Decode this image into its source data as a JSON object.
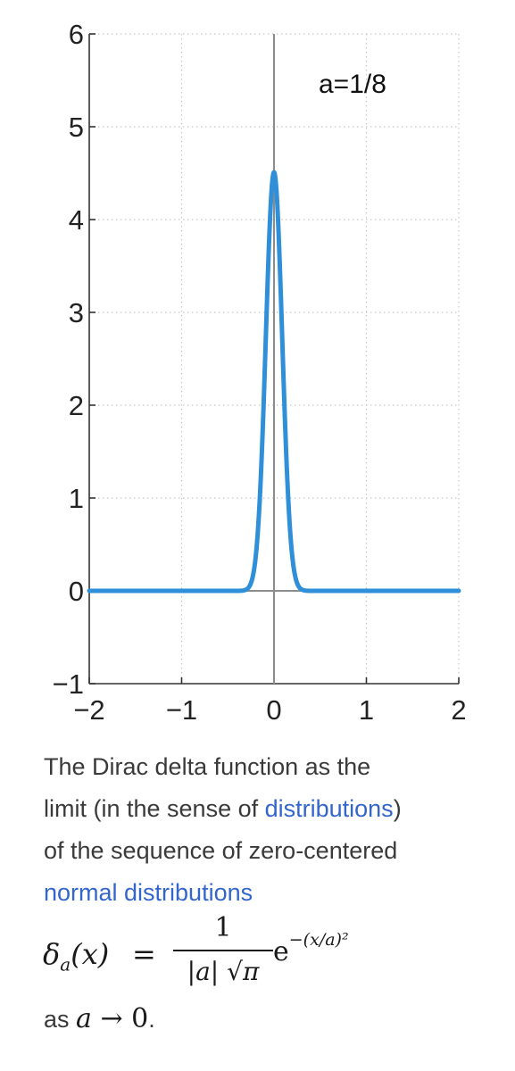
{
  "chart_data": {
    "type": "line",
    "title": "",
    "xlabel": "",
    "ylabel": "",
    "xlim": [
      -2,
      2
    ],
    "ylim": [
      -1,
      6
    ],
    "x_ticks": [
      "−2",
      "−1",
      "0",
      "1",
      "2"
    ],
    "y_ticks": [
      "−1",
      "0",
      "1",
      "2",
      "3",
      "4",
      "5",
      "6"
    ],
    "grid": true,
    "annotation": "a=1/8",
    "series": [
      {
        "color": "#2f8fd8",
        "x": [
          -2.0,
          -1.0,
          -0.5,
          -0.35,
          -0.3,
          -0.25,
          -0.2,
          -0.15,
          -0.1,
          -0.05,
          0.0,
          0.05,
          0.1,
          0.15,
          0.2,
          0.25,
          0.3,
          0.35,
          0.5,
          1.0,
          2.0
        ],
        "y": [
          0,
          0,
          0,
          0.002,
          0.014,
          0.083,
          0.35,
          1.07,
          2.37,
          3.83,
          4.51,
          3.83,
          2.37,
          1.07,
          0.35,
          0.083,
          0.014,
          0.002,
          0,
          0,
          0
        ]
      }
    ]
  },
  "caption": {
    "line1": "The Dirac delta function as the",
    "line2_before": "limit (in the sense of ",
    "link_distributions": "distributions",
    "line2_after": ")",
    "line3": "of the sequence of zero-centered",
    "link_normal": "normal distributions"
  },
  "formula": {
    "lhs_symbol": "δ",
    "lhs_sub": "a",
    "lhs_arg": "(x)",
    "equals": "=",
    "numerator": "1",
    "denominator": "|a| √π",
    "exp_base": "e",
    "exponent": "−(x/a)²"
  },
  "tail": {
    "prefix": "as ",
    "var": "a",
    "arrow": " → ",
    "limit": "0",
    "suffix": "."
  }
}
